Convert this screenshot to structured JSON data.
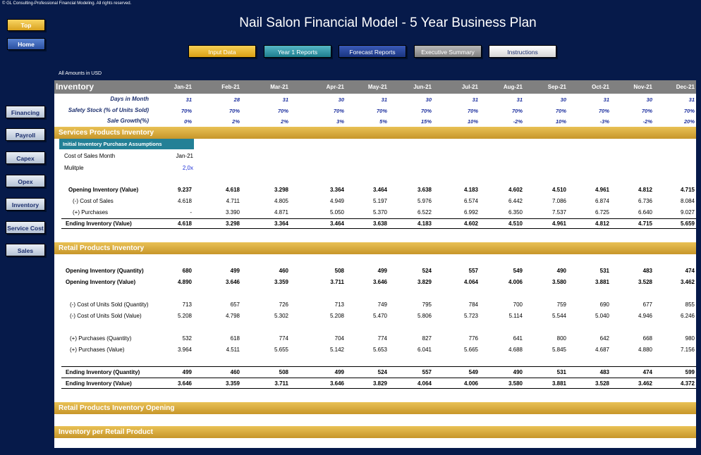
{
  "copyright": "© GL Consulting-Professional Financial Modeling. All rights reserved.",
  "title": "Nail Salon Financial Model - 5 Year Business Plan",
  "side_buttons": {
    "top": "Top",
    "home": "Home"
  },
  "nav": [
    "Financing",
    "Payroll",
    "Capex",
    "Opex",
    "Inventory",
    "Service Cost",
    "Sales"
  ],
  "top_buttons": [
    "Input Data",
    "Year 1 Reports",
    "Forecast Reports",
    "Executive Summary",
    "Instructions"
  ],
  "units_note": "All Amounts in  USD",
  "sheet_title": "Inventory",
  "months": [
    "Jan-21",
    "Feb-21",
    "Mar-21",
    "Apr-21",
    "May-21",
    "Jun-21",
    "Jul-21",
    "Aug-21",
    "Sep-21",
    "Oct-21",
    "Nov-21",
    "Dec-21"
  ],
  "assumptions": [
    {
      "label": "Days in Month",
      "values": [
        "31",
        "28",
        "31",
        "30",
        "31",
        "30",
        "31",
        "31",
        "30",
        "31",
        "30",
        "31"
      ]
    },
    {
      "label": "Safety Stock (% of Units Sold)",
      "values": [
        "70%",
        "70%",
        "70%",
        "70%",
        "70%",
        "70%",
        "70%",
        "70%",
        "70%",
        "70%",
        "70%",
        "70%"
      ]
    },
    {
      "label": "Sale Growth(%)",
      "values": [
        "0%",
        "2%",
        "2%",
        "3%",
        "5%",
        "15%",
        "10%",
        "-2%",
        "10%",
        "-3%",
        "-2%",
        "20%"
      ]
    }
  ],
  "services": {
    "title": "Services Products Inventory",
    "subtitle": "Initial Inventory Purchase Assumptions",
    "cost_month_label": "Cost of Sales Month",
    "cost_month_value": "Jan-21",
    "multiple_label": "Mulitple",
    "multiple_value": "2,0x",
    "rows": [
      {
        "label": "Opening Inventory (Value)",
        "bold": true,
        "values": [
          "9.237",
          "4.618",
          "3.298",
          "3.364",
          "3.464",
          "3.638",
          "4.183",
          "4.602",
          "4.510",
          "4.961",
          "4.812",
          "4.715"
        ]
      },
      {
        "label": "(-) Cost of Sales",
        "bold": false,
        "values": [
          "4.618",
          "4.711",
          "4.805",
          "4.949",
          "5.197",
          "5.976",
          "6.574",
          "6.442",
          "7.086",
          "6.874",
          "6.736",
          "8.084"
        ]
      },
      {
        "label": "(+) Purchases",
        "bold": false,
        "values": [
          "-",
          "3.390",
          "4.871",
          "5.050",
          "5.370",
          "6.522",
          "6.992",
          "6.350",
          "7.537",
          "6.725",
          "6.640",
          "9.027"
        ]
      },
      {
        "label": "Ending Inventory (Value)",
        "bold": true,
        "values": [
          "4.618",
          "3.298",
          "3.364",
          "3.464",
          "3.638",
          "4.183",
          "4.602",
          "4.510",
          "4.961",
          "4.812",
          "4.715",
          "5.659"
        ]
      }
    ]
  },
  "retail": {
    "title": "Retail Products Inventory",
    "rows": [
      {
        "label": "Opening Inventory (Quantity)",
        "bold": true,
        "values": [
          "680",
          "499",
          "460",
          "508",
          "499",
          "524",
          "557",
          "549",
          "490",
          "531",
          "483",
          "474"
        ]
      },
      {
        "label": "Opening Inventory (Value)",
        "bold": true,
        "values": [
          "4.890",
          "3.646",
          "3.359",
          "3.711",
          "3.646",
          "3.829",
          "4.064",
          "4.006",
          "3.580",
          "3.881",
          "3.528",
          "3.462"
        ]
      },
      {
        "label": "(-) Cost of Units Sold (Quantity)",
        "bold": false,
        "values": [
          "713",
          "657",
          "726",
          "713",
          "749",
          "795",
          "784",
          "700",
          "759",
          "690",
          "677",
          "855"
        ]
      },
      {
        "label": "(-) Cost of Units Sold (Value)",
        "bold": false,
        "values": [
          "5.208",
          "4.798",
          "5.302",
          "5.208",
          "5.470",
          "5.806",
          "5.723",
          "5.114",
          "5.544",
          "5.040",
          "4.946",
          "6.246"
        ]
      },
      {
        "label": "(+) Purchases (Quantity)",
        "bold": false,
        "values": [
          "532",
          "618",
          "774",
          "704",
          "774",
          "827",
          "776",
          "641",
          "800",
          "642",
          "668",
          "980"
        ]
      },
      {
        "label": "(+) Purchases (Value)",
        "bold": false,
        "values": [
          "3.964",
          "4.511",
          "5.655",
          "5.142",
          "5.653",
          "6.041",
          "5.665",
          "4.688",
          "5.845",
          "4.687",
          "4.880",
          "7.156"
        ]
      },
      {
        "label": "Ending Inventory (Quantity)",
        "bold": true,
        "values": [
          "499",
          "460",
          "508",
          "499",
          "524",
          "557",
          "549",
          "490",
          "531",
          "483",
          "474",
          "599"
        ]
      },
      {
        "label": "Ending Inventory (Value)",
        "bold": true,
        "values": [
          "3.646",
          "3.359",
          "3.711",
          "3.646",
          "3.829",
          "4.064",
          "4.006",
          "3.580",
          "3.881",
          "3.528",
          "3.462",
          "4.372"
        ]
      }
    ]
  },
  "sections_more": [
    "Retail Products Inventory Opening",
    "Inventory per Retail Product"
  ]
}
